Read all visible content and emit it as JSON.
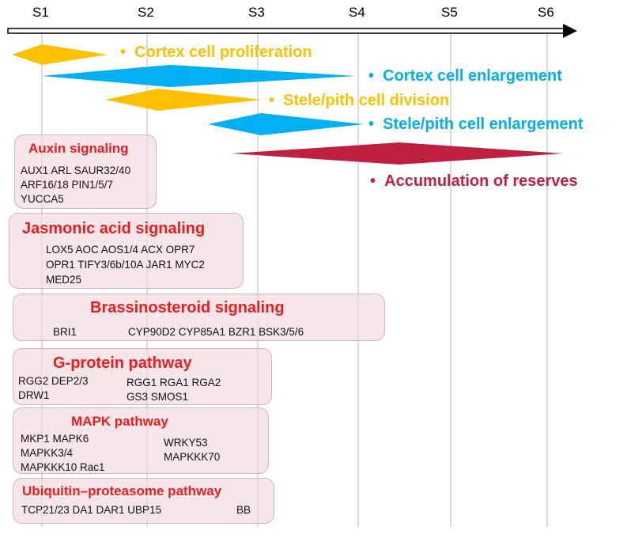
{
  "stages": [
    "S1",
    "S2",
    "S3",
    "S4",
    "S5",
    "S6"
  ],
  "phases": [
    {
      "label": "Cortex cell proliferation",
      "color": "#FFC000",
      "start": "before S1",
      "peak": "S1",
      "end": "between S1 and S2"
    },
    {
      "label": "Cortex cell enlargement",
      "color": "#00B0F0",
      "start": "S1",
      "peak": "S2-S3",
      "end": "S4"
    },
    {
      "label": "Stele/pith cell division",
      "color": "#FFC000",
      "start": "S1-S2",
      "peak": "S2",
      "end": "S3"
    },
    {
      "label": "Stele/pith cell enlargement",
      "color": "#00B0F0",
      "start": "S2-S3",
      "peak": "S3",
      "end": "S4"
    },
    {
      "label": "Accumulation of reserves",
      "color": "#C0203F",
      "start": "S3",
      "peak": "S4-S5",
      "end": "S6"
    }
  ],
  "pathways": [
    {
      "title": "Auxin signaling",
      "genes": [
        "AUX1 ARL SAUR32/40",
        "ARF16/18 PIN1/5/7",
        "YUCCA5"
      ]
    },
    {
      "title": "Jasmonic acid signaling",
      "genes": [
        "LOX5 AOC AOS1/4 ACX OPR7",
        "OPR1 TIFY3/6b/10A JAR1 MYC2",
        "MED25"
      ]
    },
    {
      "title": "Brassinosteroid signaling",
      "genes": [
        "BRI1",
        "CYP90D2 CYP85A1 BZR1 BSK3/5/6"
      ]
    },
    {
      "title": "G-protein pathway",
      "genes": [
        "RGG2  DEP2/3",
        "DRW1",
        "RGG1 RGA1  RGA2",
        "GS3  SMOS1"
      ]
    },
    {
      "title": "MAPK pathway",
      "genes": [
        "MKP1 MAPK6",
        "MAPKK3/4",
        "MAPKKK10  Rac1",
        "WRKY53",
        "MAPKKK70"
      ]
    },
    {
      "title": "Ubiquitin–proteasome pathway",
      "genes": [
        "TCP21/23  DA1 DAR1 UBP15",
        "BB"
      ]
    }
  ],
  "colors": {
    "orange": "#FFC000",
    "blue": "#00B0F0",
    "crimson": "#C0203F",
    "title_red": "#EE1C1C",
    "box_fill": "#F4DCE0"
  }
}
